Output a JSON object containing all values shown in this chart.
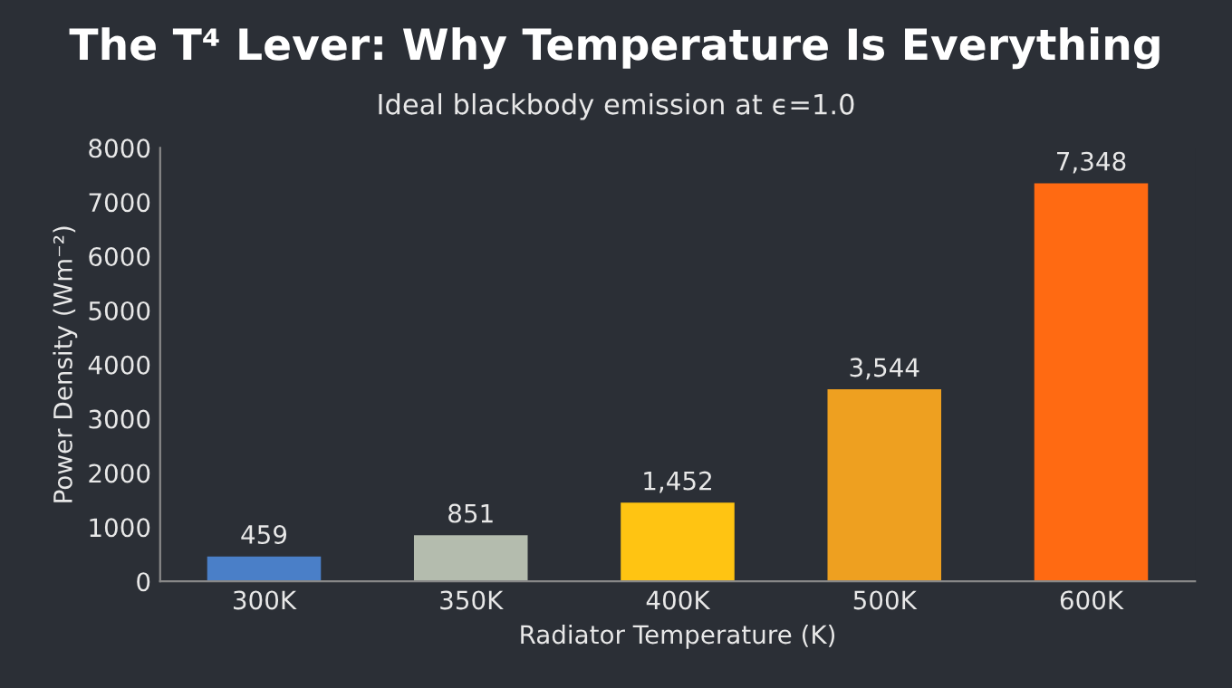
{
  "chart_data": {
    "type": "bar",
    "title": "The T⁴ Lever: Why Temperature Is Everything",
    "subtitle": "Ideal blackbody emission at ϵ=1.0",
    "xlabel": "Radiator Temperature (K)",
    "ylabel": "Power Density (Wm⁻²)",
    "categories": [
      "300K",
      "350K",
      "400K",
      "500K",
      "600K"
    ],
    "values": [
      459,
      851,
      1452,
      3544,
      7348
    ],
    "value_labels": [
      "459",
      "851",
      "1,452",
      "3,544",
      "7,348"
    ],
    "colors": [
      "#4a7fc8",
      "#b4bcae",
      "#ffc412",
      "#eea020",
      "#ff6a12"
    ],
    "ylim": [
      0,
      8000
    ],
    "yticks": [
      0,
      1000,
      2000,
      3000,
      4000,
      5000,
      6000,
      7000,
      8000
    ],
    "grid": false,
    "legend": false
  }
}
